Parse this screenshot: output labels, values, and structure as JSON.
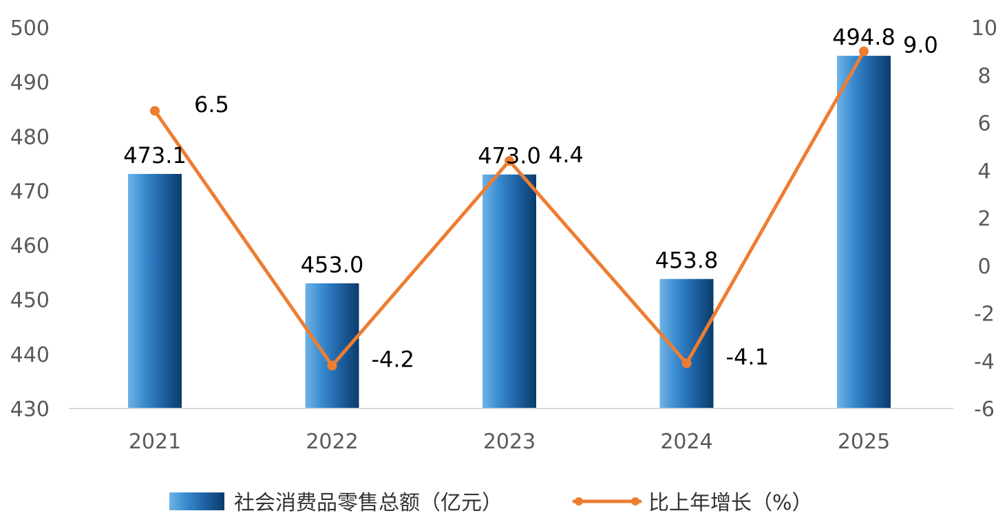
{
  "chart_data": {
    "type": "bar",
    "categories": [
      "2021",
      "2022",
      "2023",
      "2024",
      "2025"
    ],
    "series": [
      {
        "name": "社会消费品零售总额（亿元）",
        "type": "bar",
        "axis": "left",
        "values": [
          473.1,
          453.0,
          473.0,
          453.8,
          494.8
        ],
        "labels": [
          "473.1",
          "453.0",
          "473.0",
          "453.8",
          "494.8"
        ],
        "color": "#2E75B6"
      },
      {
        "name": "比上年增长（%）",
        "type": "line",
        "axis": "right",
        "values": [
          6.5,
          -4.2,
          4.4,
          -4.1,
          9.0
        ],
        "labels": [
          "6.5",
          "-4.2",
          "4.4",
          "-4.1",
          "9.0"
        ],
        "color": "#ED7D31"
      }
    ],
    "ylim": [
      430,
      500
    ],
    "yticks": [
      "500",
      "490",
      "480",
      "470",
      "460",
      "450",
      "440",
      "430"
    ],
    "y2lim": [
      -6,
      10
    ],
    "y2ticks": [
      "10",
      "8",
      "6",
      "4",
      "2",
      "0",
      "-2",
      "-4",
      "-6"
    ],
    "legend_position": "bottom",
    "grid": false
  }
}
